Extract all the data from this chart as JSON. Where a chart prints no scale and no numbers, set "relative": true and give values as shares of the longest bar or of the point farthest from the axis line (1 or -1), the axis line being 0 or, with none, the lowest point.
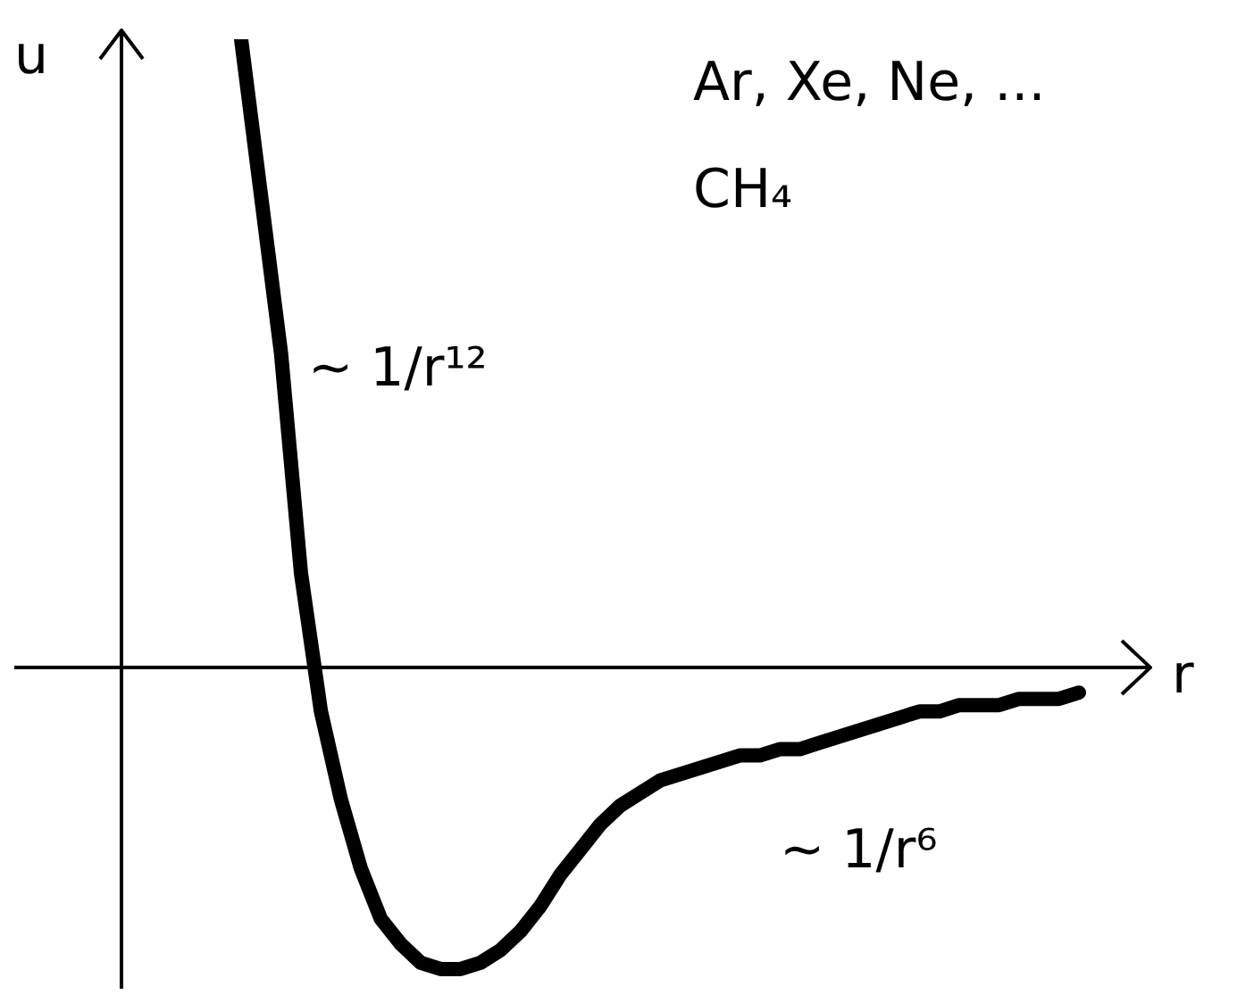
{
  "chart_data": {
    "type": "line",
    "relative": true,
    "xlabel": "r",
    "ylabel": "u",
    "marker": "none",
    "line_style": "solid",
    "annotations": [
      "Ar, Xe, Ne, ...",
      "CH₄",
      "~ 1/r¹²",
      "~ 1/r⁶"
    ],
    "categories": [
      null,
      null,
      null,
      null,
      null,
      null,
      null,
      null,
      null,
      null,
      null,
      null,
      null,
      null,
      null,
      null,
      null,
      null,
      null,
      null,
      null,
      null,
      null,
      null,
      null,
      null,
      null,
      null,
      null,
      null,
      null,
      null,
      null,
      null,
      null,
      null,
      null,
      null,
      null,
      null,
      null,
      null,
      null,
      null,
      null,
      null,
      null,
      null,
      null
    ],
    "series": [
      {
        "color": "#000000",
        "values": [
          null,
          null,
          null,
          null,
          null,
          null,
          1,
          0.75,
          0.5,
          0.15,
          -0.07,
          -0.21,
          -0.32,
          -0.4,
          -0.44,
          -0.47,
          -0.48,
          -0.48,
          -0.47,
          -0.45,
          -0.42,
          -0.38,
          -0.33,
          -0.29,
          -0.25,
          -0.22,
          -0.2,
          -0.18,
          -0.17,
          -0.16,
          -0.15,
          -0.14,
          -0.14,
          -0.13,
          -0.13,
          -0.12,
          -0.11,
          -0.1,
          -0.09,
          -0.08,
          -0.07,
          -0.07,
          -0.06,
          -0.06,
          -0.06,
          -0.05,
          -0.05,
          -0.05,
          -0.04
        ]
      }
    ]
  }
}
